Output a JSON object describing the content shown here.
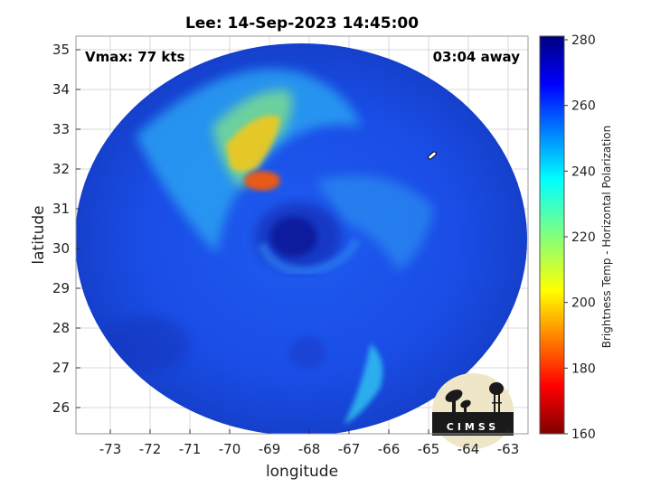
{
  "title": "Lee: 14-Sep-2023 14:45:00",
  "annotation_left": "Vmax: 77 kts",
  "annotation_right": "03:04 away",
  "xlabel": "longitude",
  "ylabel": "latitude",
  "x_ticks": [
    "-73",
    "-72",
    "-71",
    "-70",
    "-69",
    "-68",
    "-67",
    "-66",
    "-65",
    "-64",
    "-63"
  ],
  "y_ticks": [
    "35",
    "34",
    "33",
    "32",
    "31",
    "30",
    "29",
    "28",
    "27",
    "26"
  ],
  "colorbar": {
    "label": "Brightness Temp - Horizontal Polarization",
    "ticks": [
      "280",
      "260",
      "240",
      "220",
      "200",
      "180",
      "160"
    ],
    "range": [
      160,
      280
    ],
    "colormap": "jet"
  },
  "logo_text": "CIMSS",
  "colors": {
    "background_disc": "#1a4de6",
    "eye": "#0d1f9e",
    "warm_band": "#f2c81f",
    "hot_spot": "#e85a14"
  }
}
